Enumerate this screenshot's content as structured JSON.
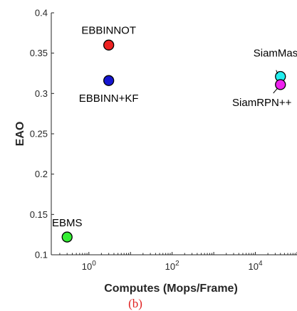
{
  "chart_data": {
    "type": "scatter",
    "xlabel": "Computes (Mops/Frame)",
    "ylabel": "EAO",
    "x_scale": "log",
    "xlim": [
      0.125,
      100000
    ],
    "ylim": [
      0.1,
      0.4
    ],
    "grid": false,
    "y_ticks": [
      "0.1",
      "0.15",
      "0.2",
      "0.25",
      "0.3",
      "0.35",
      "0.4"
    ],
    "x_ticks": [
      {
        "base": "10",
        "exp": "0"
      },
      {
        "base": "10",
        "exp": "2"
      },
      {
        "base": "10",
        "exp": "4"
      }
    ],
    "points": [
      {
        "label": "EBBINNOT",
        "x": 3,
        "y": 0.36,
        "color": "#ee2222"
      },
      {
        "label": "EBBINN+KF",
        "x": 3,
        "y": 0.316,
        "color": "#1515d0"
      },
      {
        "label": "EBMS",
        "x": 0.3,
        "y": 0.122,
        "color": "#33ee33"
      },
      {
        "label": "SiamMask",
        "x": 40000,
        "y": 0.321,
        "color": "#22eeee"
      },
      {
        "label": "SiamRPN++",
        "x": 40000,
        "y": 0.311,
        "color": "#ee22ee"
      }
    ]
  },
  "caption": "(b)"
}
